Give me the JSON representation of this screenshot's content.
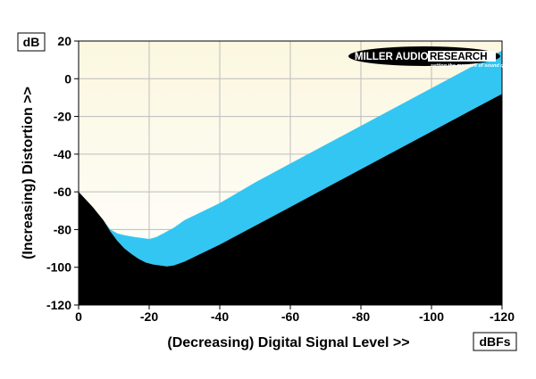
{
  "chart_data": {
    "type": "area",
    "xlabel": "(Decreasing) Digital Signal Level >>",
    "ylabel": "(Increasing) Distortion >>",
    "x_unit": "dBFs",
    "y_unit": "dB",
    "xlim": [
      0,
      -120
    ],
    "ylim": [
      -120,
      20
    ],
    "x_ticks": [
      0,
      -20,
      -40,
      -60,
      -80,
      -100,
      -120
    ],
    "x_tick_labels": [
      "0",
      "-20",
      "-40",
      "-60",
      "-80",
      "-100",
      "-120"
    ],
    "y_ticks": [
      20,
      0,
      -20,
      -40,
      -60,
      -80,
      -100,
      -120
    ],
    "y_tick_labels": [
      "20",
      "0",
      "-20",
      "-40",
      "-60",
      "-80",
      "-100",
      "-120"
    ],
    "grid": true,
    "series": [
      {
        "role": "upper",
        "x": [
          0,
          -4,
          -7,
          -9,
          -11,
          -13,
          -16,
          -18,
          -20,
          -22,
          -24,
          -27,
          -30,
          -40,
          -50,
          -60,
          -70,
          -80,
          -90,
          -100,
          -110,
          -120
        ],
        "y": [
          -60,
          -68,
          -75,
          -80,
          -82,
          -83,
          -84,
          -84.5,
          -85,
          -84,
          -82,
          -79,
          -75,
          -66,
          -55,
          -45,
          -35,
          -25,
          -15,
          -5,
          5,
          15
        ]
      },
      {
        "role": "lower",
        "x": [
          0,
          -4,
          -7,
          -9,
          -11,
          -13,
          -15,
          -17,
          -19,
          -21,
          -23,
          -25,
          -27,
          -30,
          -40,
          -50,
          -60,
          -70,
          -80,
          -90,
          -100,
          -110,
          -120
        ],
        "y": [
          -60,
          -68,
          -75,
          -81,
          -86,
          -90,
          -93,
          -95.5,
          -97.5,
          -98.5,
          -99,
          -99.5,
          -99,
          -97,
          -88,
          -78,
          -68,
          -58,
          -48,
          -38,
          -28,
          -18,
          -8
        ]
      }
    ],
    "colors": {
      "background_top": "#fbf7df",
      "background_bottom": "#ffffff",
      "band": "#33c6f2",
      "below": "#000000",
      "grid": "#bdbdbd"
    }
  },
  "logo": {
    "name": "MILLER AUDIO RESEARCH",
    "part1": "MILLER AUDIO",
    "part2": "RESEARCH",
    "tagline": "setting the measure of sound quality"
  }
}
